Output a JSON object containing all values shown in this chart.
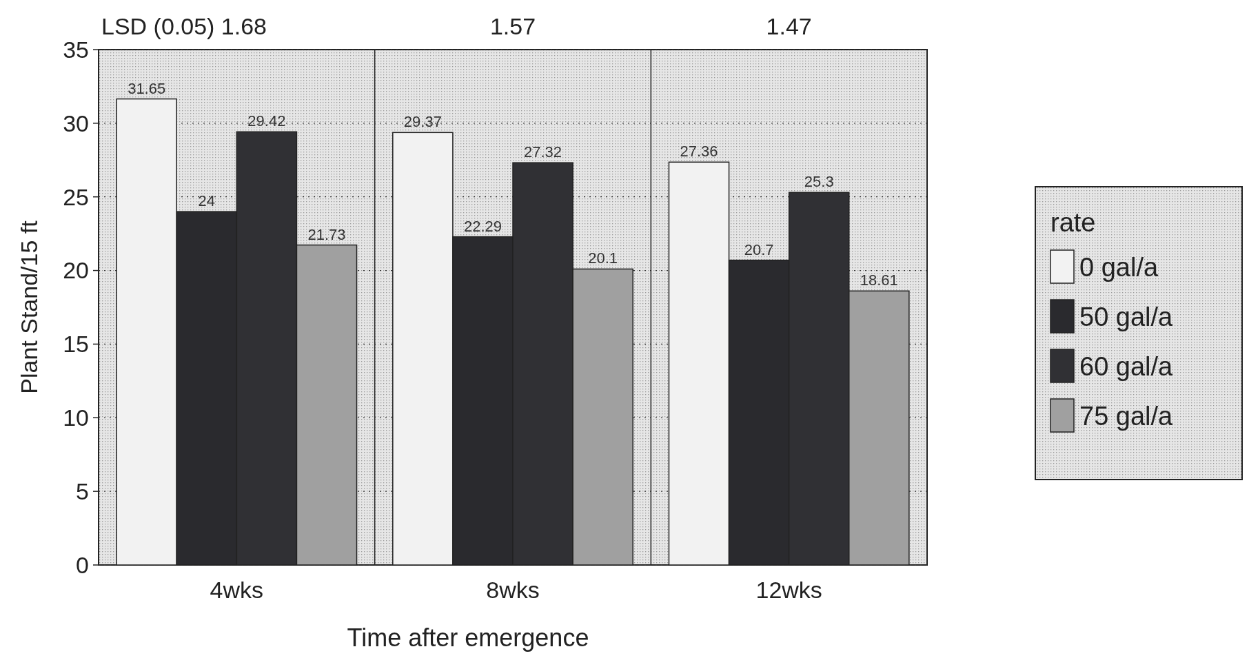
{
  "chart_data": {
    "type": "bar",
    "xlabel": "Time after emergence",
    "ylabel": "Plant Stand/15 ft",
    "legend_title": "rate",
    "categories": [
      "4wks",
      "8wks",
      "12wks"
    ],
    "series": [
      {
        "name": "0 gal/a",
        "color": "#f2f2f2",
        "values": [
          31.65,
          29.37,
          27.36
        ]
      },
      {
        "name": "50 gal/a",
        "color": "#2a2a2e",
        "values": [
          24,
          22.29,
          20.7
        ]
      },
      {
        "name": "60 gal/a",
        "color": "#303034",
        "values": [
          29.42,
          27.32,
          25.3
        ]
      },
      {
        "name": "75 gal/a",
        "color": "#a0a0a0",
        "values": [
          21.73,
          20.1,
          18.61
        ]
      }
    ],
    "ylim": [
      0,
      35
    ],
    "yticks": [
      0,
      5,
      10,
      15,
      20,
      25,
      30,
      35
    ],
    "grid": "y",
    "legend": "right",
    "data_labels": true,
    "annotations": [
      "LSD (0.05) 1.68",
      "1.57",
      "1.47"
    ]
  }
}
